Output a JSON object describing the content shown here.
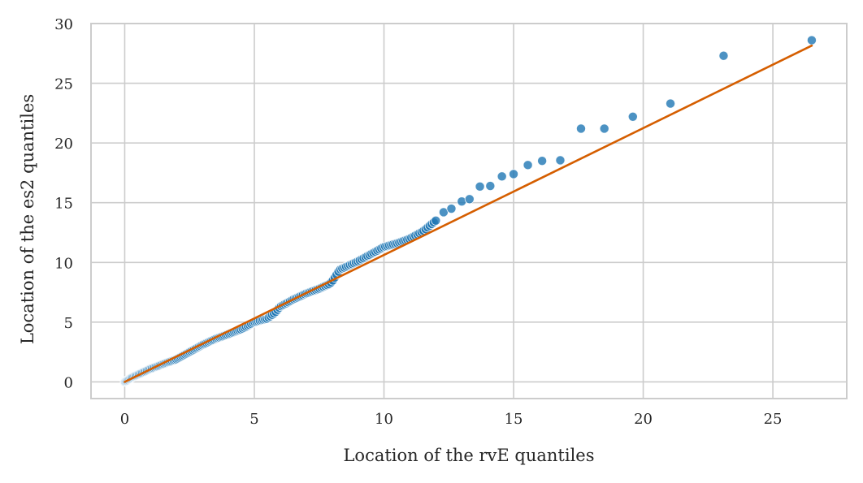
{
  "chart_data": {
    "type": "scatter",
    "title": "",
    "xlabel": "Location of the rvE quantiles",
    "ylabel": "Location of the es2 quantiles",
    "xlim": [
      -1.3,
      27.85
    ],
    "ylim": [
      -1.4,
      30
    ],
    "xticks": [
      0,
      5,
      10,
      15,
      20,
      25
    ],
    "yticks": [
      0,
      5,
      10,
      15,
      20,
      25,
      30
    ],
    "xtick_labels": [
      "0",
      "5",
      "10",
      "15",
      "20",
      "25"
    ],
    "ytick_labels": [
      "0",
      "5",
      "10",
      "15",
      "20",
      "25",
      "30"
    ],
    "grid": true,
    "legend": null,
    "colors": {
      "points": "#1f77b4",
      "points_alpha": 0.8,
      "reference_line": "#d55e00",
      "grid": "#cccccc",
      "text": "#262626"
    },
    "series": [
      {
        "name": "quantiles",
        "type": "scatter",
        "anchor_curve": {
          "x": [
            0,
            0.3,
            0.6,
            1.0,
            1.5,
            2.0,
            2.5,
            3.0,
            3.5,
            4.0,
            4.5,
            5.0,
            5.5,
            5.8,
            6.0,
            6.5,
            7.0,
            7.5,
            7.9,
            8.0,
            8.3,
            8.7,
            9.0,
            9.5,
            10.0,
            10.5,
            11.0,
            11.5,
            12.0
          ],
          "y": [
            0,
            0.4,
            0.7,
            1.1,
            1.5,
            1.9,
            2.5,
            3.1,
            3.6,
            4.0,
            4.4,
            5.0,
            5.3,
            5.8,
            6.3,
            6.9,
            7.4,
            7.8,
            8.2,
            8.4,
            9.4,
            9.8,
            10.1,
            10.7,
            11.3,
            11.6,
            12.0,
            12.6,
            13.5
          ],
          "n_points": 190
        },
        "tail_points": [
          {
            "x": 12.3,
            "y": 14.2
          },
          {
            "x": 12.6,
            "y": 14.5
          },
          {
            "x": 13.0,
            "y": 15.1
          },
          {
            "x": 13.3,
            "y": 15.3
          },
          {
            "x": 13.7,
            "y": 16.35
          },
          {
            "x": 14.1,
            "y": 16.4
          },
          {
            "x": 14.55,
            "y": 17.2
          },
          {
            "x": 15.0,
            "y": 17.4
          },
          {
            "x": 15.55,
            "y": 18.15
          },
          {
            "x": 16.1,
            "y": 18.5
          },
          {
            "x": 16.8,
            "y": 18.55
          },
          {
            "x": 17.6,
            "y": 21.2
          },
          {
            "x": 18.5,
            "y": 21.2
          },
          {
            "x": 19.6,
            "y": 22.2
          },
          {
            "x": 21.05,
            "y": 23.3
          },
          {
            "x": 23.1,
            "y": 27.3
          },
          {
            "x": 26.5,
            "y": 28.6
          }
        ]
      },
      {
        "name": "reference line",
        "type": "line",
        "x": [
          0,
          26.5
        ],
        "y": [
          0,
          28.15
        ]
      }
    ]
  }
}
